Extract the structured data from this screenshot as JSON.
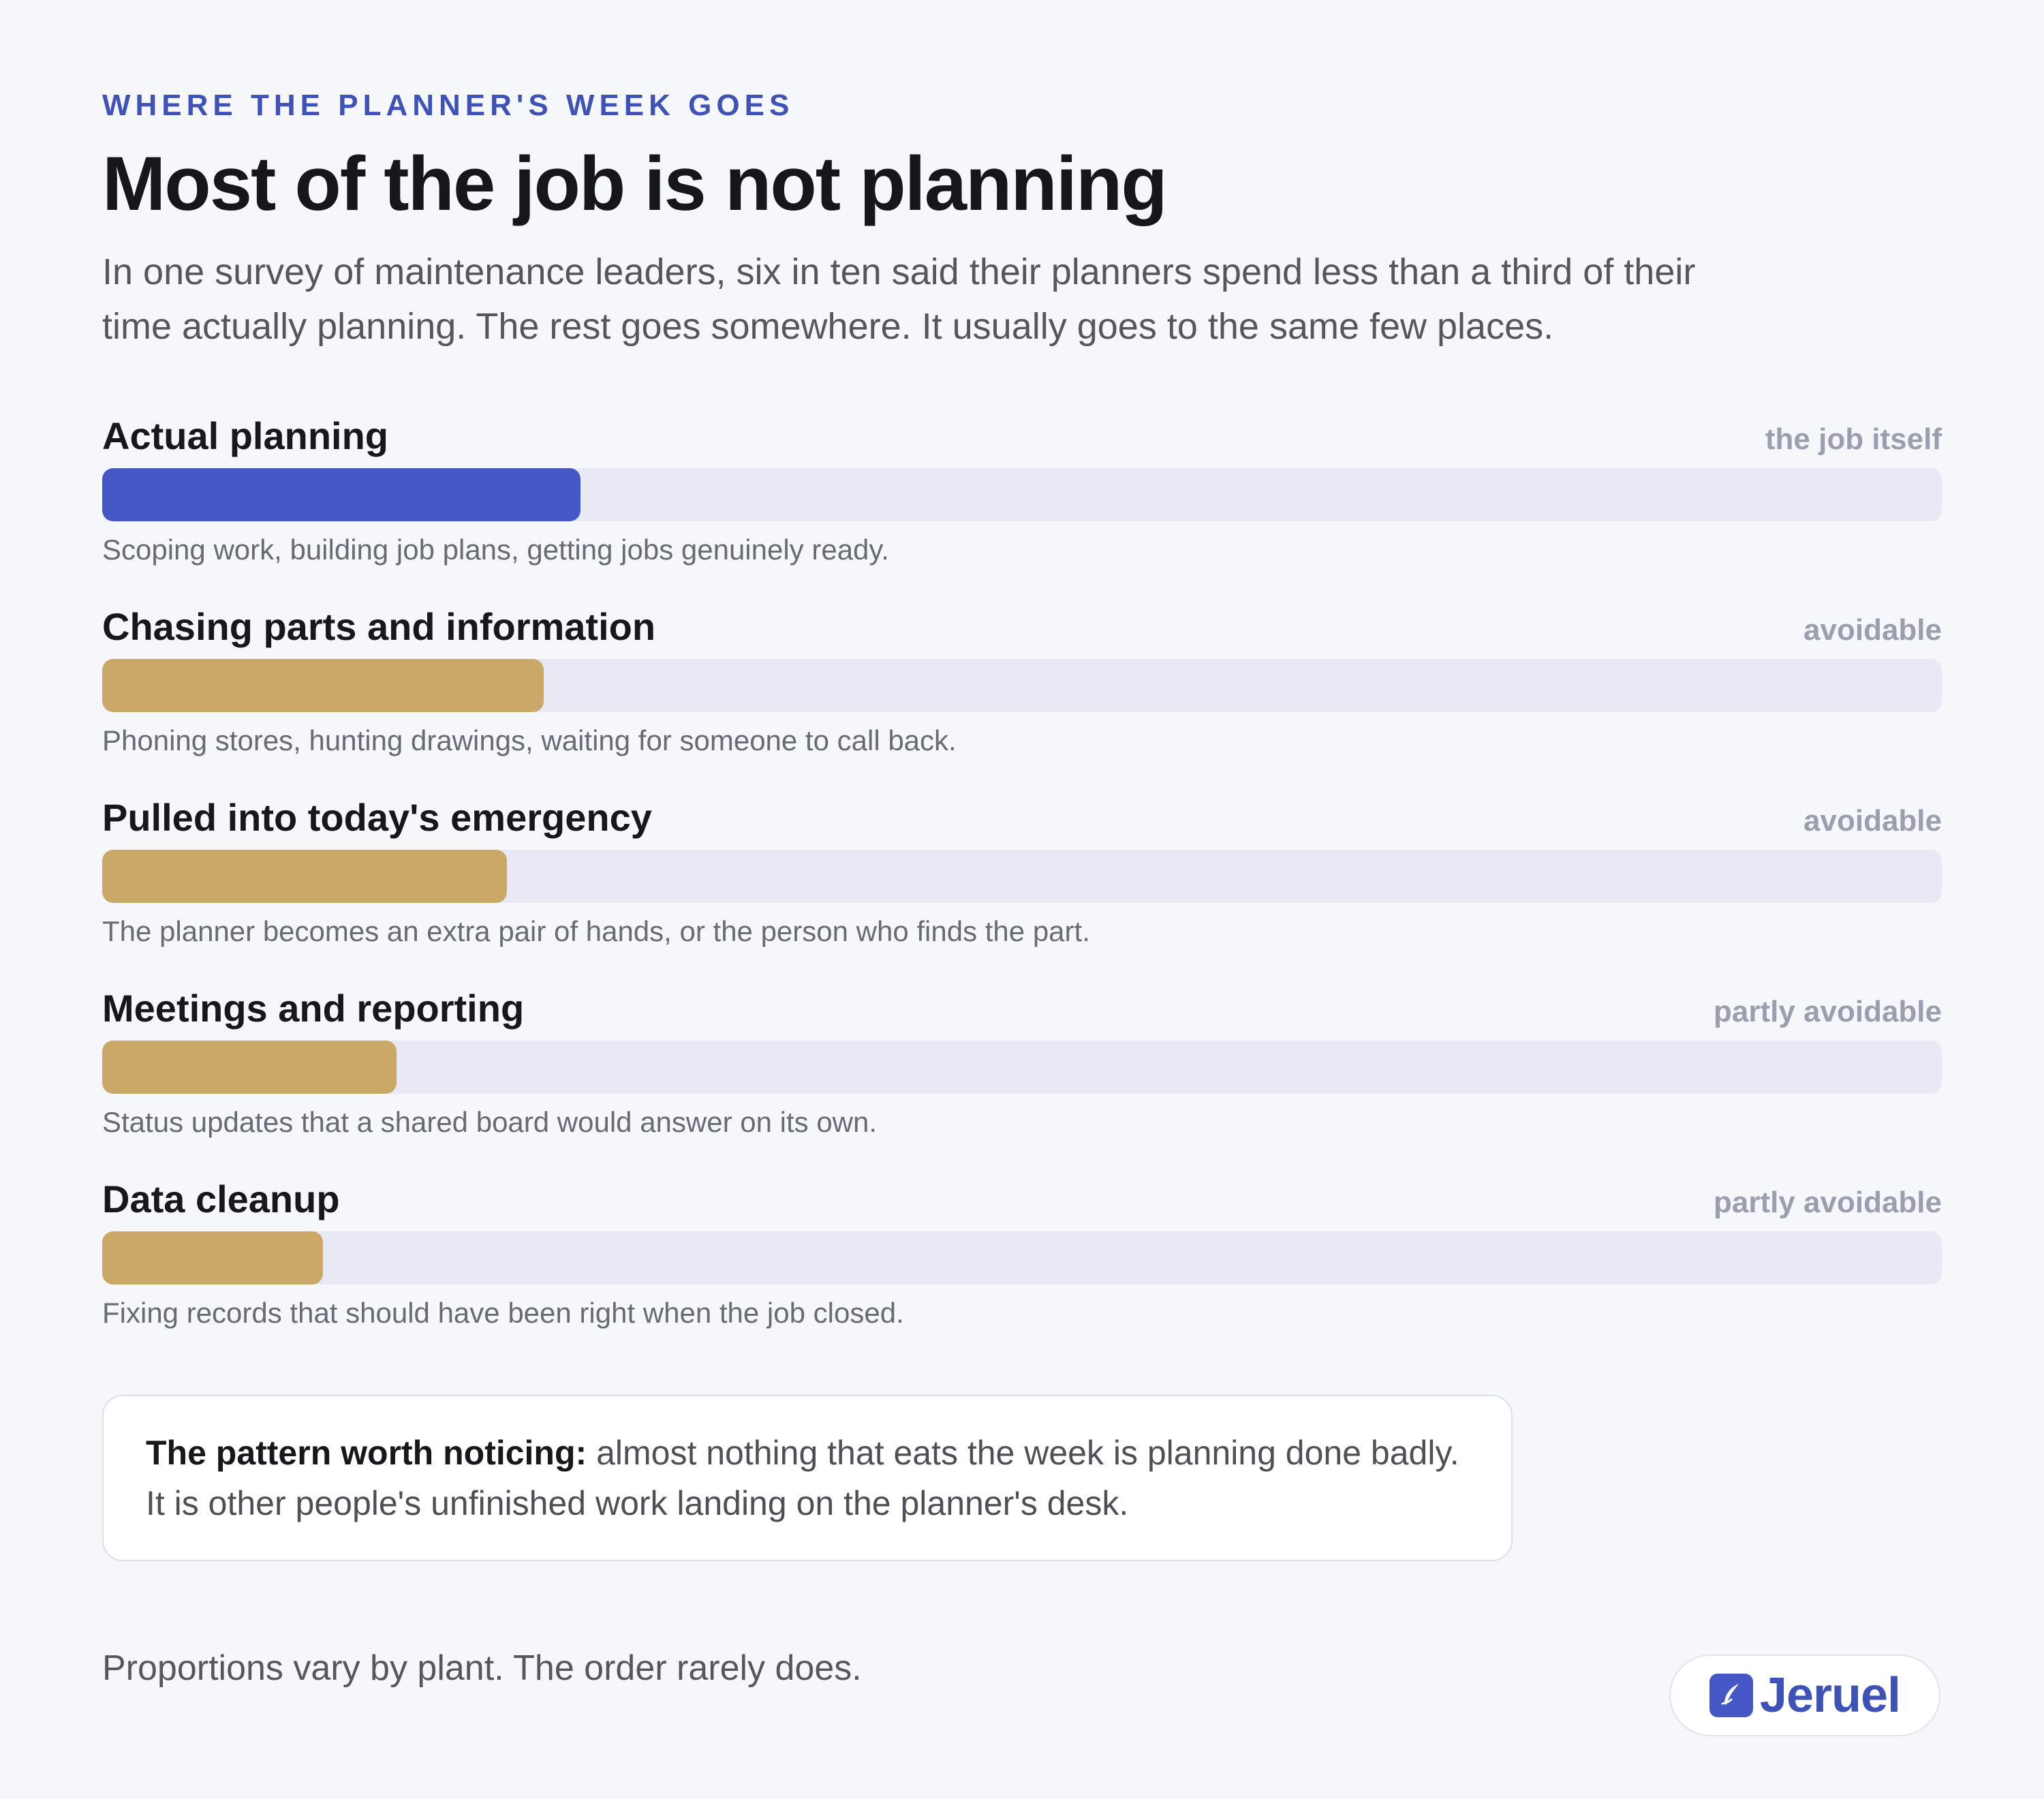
{
  "header": {
    "eyebrow": "WHERE THE PLANNER'S WEEK GOES",
    "title": "Most of the job is not planning",
    "intro": "In one survey of maintenance leaders, six in ten said their planners spend less than a third of their time actually planning. The rest goes somewhere. It usually goes to the same few places."
  },
  "colors": {
    "primary": "#4457c4",
    "avoidable": "#c9a868",
    "track": "#e8e9f4"
  },
  "chart_data": {
    "type": "bar",
    "orientation": "horizontal",
    "value_unit": "fraction of bar track filled (relative, unlabeled)",
    "categories": [
      "Actual planning",
      "Chasing parts and information",
      "Pulled into today's emergency",
      "Meetings and reporting",
      "Data cleanup"
    ],
    "values": [
      0.26,
      0.24,
      0.22,
      0.16,
      0.12
    ],
    "tags": [
      "the job itself",
      "avoidable",
      "avoidable",
      "partly avoidable",
      "partly avoidable"
    ],
    "descriptions": [
      "Scoping work, building job plans, getting jobs genuinely ready.",
      "Phoning stores, hunting drawings, waiting for someone to call back.",
      "The planner becomes an extra pair of hands, or the person who finds the part.",
      "Status updates that a shared board would answer on its own.",
      "Fixing records that should have been right when the job closed."
    ],
    "bar_colors": [
      "#4457c4",
      "#c9a868",
      "#c9a868",
      "#c9a868",
      "#c9a868"
    ],
    "xlim": [
      0,
      1
    ],
    "grid": false,
    "legend": "none"
  },
  "callout": {
    "lead": "The pattern worth noticing:",
    "text": " almost nothing that eats the week is planning done badly. It is other people's unfinished work landing on the planner's desk."
  },
  "footer": {
    "note": "Proportions vary by plant. The order rarely does.",
    "brand": "Jeruel",
    "brand_icon": "feather-logo-icon"
  }
}
